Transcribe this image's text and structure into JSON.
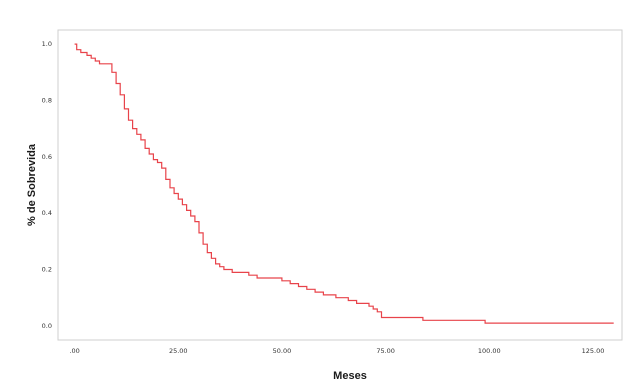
{
  "chart_data": {
    "type": "line",
    "title": "",
    "xlabel": "Meses",
    "ylabel": "% de Sobrevida",
    "xlim": [
      -4,
      132
    ],
    "ylim": [
      -0.05,
      1.05
    ],
    "x_ticks": [
      0,
      25,
      50,
      75,
      100,
      125
    ],
    "x_tick_labels": [
      ".00",
      "25.00",
      "50.00",
      "75.00",
      "100.00",
      "125.00"
    ],
    "y_ticks": [
      0,
      0.2,
      0.4,
      0.6,
      0.8,
      1.0
    ],
    "y_tick_labels": [
      "0.0",
      "0.2",
      "0.4",
      "0.6",
      "0.8",
      "1.0"
    ],
    "grid": false,
    "legend": "none",
    "series": [
      {
        "step": true,
        "color": "#e8434a",
        "points": [
          [
            0,
            1.0
          ],
          [
            0.5,
            0.98
          ],
          [
            1.5,
            0.97
          ],
          [
            3,
            0.96
          ],
          [
            4,
            0.95
          ],
          [
            5,
            0.94
          ],
          [
            6,
            0.93
          ],
          [
            8,
            0.93
          ],
          [
            9,
            0.9
          ],
          [
            10,
            0.86
          ],
          [
            11,
            0.82
          ],
          [
            12,
            0.77
          ],
          [
            13,
            0.73
          ],
          [
            14,
            0.7
          ],
          [
            15,
            0.68
          ],
          [
            16,
            0.66
          ],
          [
            17,
            0.63
          ],
          [
            18,
            0.61
          ],
          [
            19,
            0.59
          ],
          [
            20,
            0.58
          ],
          [
            21,
            0.56
          ],
          [
            22,
            0.52
          ],
          [
            23,
            0.49
          ],
          [
            24,
            0.47
          ],
          [
            25,
            0.45
          ],
          [
            26,
            0.43
          ],
          [
            27,
            0.41
          ],
          [
            28,
            0.39
          ],
          [
            29,
            0.37
          ],
          [
            30,
            0.33
          ],
          [
            31,
            0.29
          ],
          [
            32,
            0.26
          ],
          [
            33,
            0.24
          ],
          [
            34,
            0.22
          ],
          [
            35,
            0.21
          ],
          [
            36,
            0.2
          ],
          [
            38,
            0.19
          ],
          [
            40,
            0.19
          ],
          [
            42,
            0.18
          ],
          [
            44,
            0.17
          ],
          [
            48,
            0.17
          ],
          [
            50,
            0.16
          ],
          [
            52,
            0.15
          ],
          [
            54,
            0.14
          ],
          [
            56,
            0.13
          ],
          [
            58,
            0.12
          ],
          [
            60,
            0.11
          ],
          [
            63,
            0.1
          ],
          [
            66,
            0.09
          ],
          [
            68,
            0.08
          ],
          [
            71,
            0.07
          ],
          [
            72,
            0.06
          ],
          [
            73,
            0.05
          ],
          [
            74,
            0.03
          ],
          [
            80,
            0.03
          ],
          [
            84,
            0.02
          ],
          [
            95,
            0.02
          ],
          [
            99,
            0.01
          ],
          [
            110,
            0.01
          ],
          [
            130,
            0.01
          ]
        ]
      }
    ]
  }
}
